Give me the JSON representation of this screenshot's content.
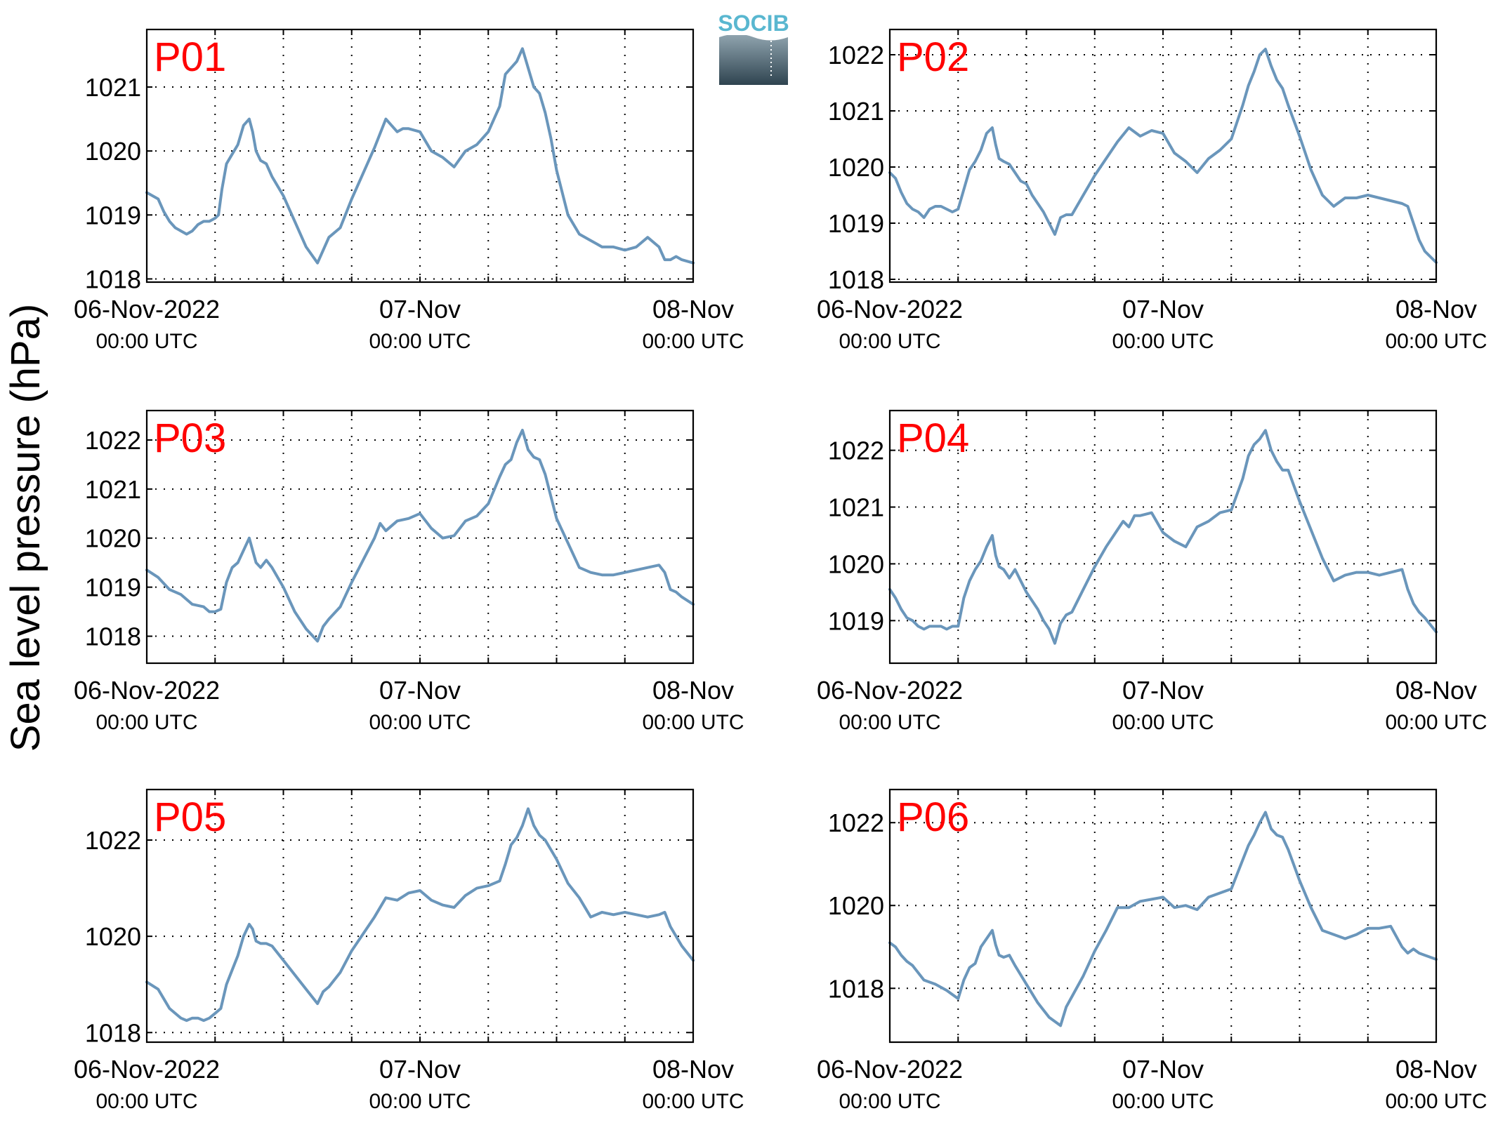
{
  "figure": {
    "ylabel": "Sea level pressure (hPa)",
    "logo_text": "SOCIB",
    "line_color": "#6a96bb",
    "label_color": "#ff0000"
  },
  "chart_data": [
    {
      "type": "line",
      "name": "P01",
      "x_ticks": [
        {
          "main": "06-Nov-2022",
          "sub": "00:00 UTC",
          "hour": 0
        },
        {
          "main": "07-Nov",
          "sub": "00:00 UTC",
          "hour": 24
        },
        {
          "main": "08-Nov",
          "sub": "00:00 UTC",
          "hour": 48
        }
      ],
      "xlim": [
        0,
        48
      ],
      "ylim": [
        1017.95,
        1021.9
      ],
      "yticks": [
        1018,
        1019,
        1020,
        1021
      ],
      "x": [
        0,
        1,
        1.5,
        2,
        2.5,
        3,
        3.5,
        4,
        4.5,
        5,
        5.5,
        6,
        6.3,
        6.6,
        7,
        7.5,
        8,
        8.5,
        9,
        9.3,
        9.6,
        10,
        10.5,
        11,
        12,
        13,
        14,
        15,
        15.5,
        16,
        17,
        18,
        19,
        20,
        21,
        21.5,
        22,
        22.5,
        23,
        24,
        25,
        26,
        27,
        28,
        29,
        30,
        31,
        31.5,
        32,
        32.5,
        33,
        33.5,
        34,
        34.5,
        35,
        35.5,
        36,
        37,
        38,
        39,
        39.5,
        40,
        41,
        42,
        43,
        44,
        45,
        45.5,
        46,
        46.5,
        47,
        48
      ],
      "y": [
        1019.35,
        1019.25,
        1019.05,
        1018.9,
        1018.8,
        1018.75,
        1018.7,
        1018.75,
        1018.85,
        1018.9,
        1018.9,
        1018.95,
        1019.0,
        1019.4,
        1019.8,
        1019.95,
        1020.1,
        1020.4,
        1020.5,
        1020.3,
        1020.0,
        1019.85,
        1019.8,
        1019.6,
        1019.3,
        1018.9,
        1018.5,
        1018.25,
        1018.45,
        1018.65,
        1018.8,
        1019.25,
        1019.65,
        1020.05,
        1020.5,
        1020.4,
        1020.3,
        1020.35,
        1020.35,
        1020.3,
        1020.0,
        1019.9,
        1019.75,
        1020.0,
        1020.1,
        1020.3,
        1020.7,
        1021.2,
        1021.3,
        1021.4,
        1021.6,
        1021.3,
        1021.0,
        1020.9,
        1020.6,
        1020.2,
        1019.7,
        1019.0,
        1018.7,
        1018.6,
        1018.55,
        1018.5,
        1018.5,
        1018.45,
        1018.5,
        1018.65,
        1018.5,
        1018.3,
        1018.3,
        1018.35,
        1018.3,
        1018.25
      ]
    },
    {
      "type": "line",
      "name": "P02",
      "x_ticks": [
        {
          "main": "06-Nov-2022",
          "sub": "00:00 UTC",
          "hour": 0
        },
        {
          "main": "07-Nov",
          "sub": "00:00 UTC",
          "hour": 24
        },
        {
          "main": "08-Nov",
          "sub": "00:00 UTC",
          "hour": 48
        }
      ],
      "xlim": [
        0,
        48
      ],
      "ylim": [
        1017.95,
        1022.45
      ],
      "yticks": [
        1018,
        1019,
        1020,
        1021,
        1022
      ],
      "x": [
        0,
        0.5,
        1,
        1.5,
        2,
        2.5,
        3,
        3.5,
        4,
        4.5,
        5,
        5.5,
        6,
        6.5,
        7,
        7.5,
        8,
        8.5,
        9,
        9.3,
        9.6,
        10,
        10.5,
        11,
        11.5,
        12,
        12.5,
        13,
        13.5,
        14,
        14.5,
        15,
        15.5,
        16,
        17,
        18,
        19,
        20,
        21,
        22,
        23,
        24,
        25,
        26,
        27,
        28,
        29,
        30,
        31,
        31.5,
        32,
        32.5,
        33,
        33.5,
        34,
        34.5,
        35,
        36,
        37,
        38,
        39,
        40,
        41,
        42,
        43,
        44,
        45,
        45.5,
        46,
        46.5,
        47,
        48
      ],
      "y": [
        1019.9,
        1019.8,
        1019.55,
        1019.35,
        1019.25,
        1019.2,
        1019.1,
        1019.25,
        1019.3,
        1019.3,
        1019.25,
        1019.2,
        1019.25,
        1019.6,
        1019.95,
        1020.1,
        1020.3,
        1020.6,
        1020.7,
        1020.4,
        1020.15,
        1020.1,
        1020.05,
        1019.9,
        1019.75,
        1019.7,
        1019.5,
        1019.35,
        1019.2,
        1019.0,
        1018.8,
        1019.1,
        1019.15,
        1019.15,
        1019.5,
        1019.85,
        1020.15,
        1020.45,
        1020.7,
        1020.55,
        1020.65,
        1020.6,
        1020.25,
        1020.1,
        1019.9,
        1020.15,
        1020.3,
        1020.5,
        1021.1,
        1021.45,
        1021.7,
        1022.0,
        1022.1,
        1021.8,
        1021.55,
        1021.4,
        1021.1,
        1020.55,
        1019.95,
        1019.5,
        1019.3,
        1019.45,
        1019.45,
        1019.5,
        1019.45,
        1019.4,
        1019.35,
        1019.3,
        1019.0,
        1018.7,
        1018.5,
        1018.3
      ]
    },
    {
      "type": "line",
      "name": "P03",
      "x_ticks": [
        {
          "main": "06-Nov-2022",
          "sub": "00:00 UTC",
          "hour": 0
        },
        {
          "main": "07-Nov",
          "sub": "00:00 UTC",
          "hour": 24
        },
        {
          "main": "08-Nov",
          "sub": "00:00 UTC",
          "hour": 48
        }
      ],
      "xlim": [
        0,
        48
      ],
      "ylim": [
        1017.45,
        1022.6
      ],
      "yticks": [
        1018,
        1019,
        1020,
        1021,
        1022
      ],
      "x": [
        0,
        1,
        2,
        3,
        4,
        5,
        5.5,
        6,
        6.5,
        7,
        7.5,
        8,
        8.5,
        9,
        9.3,
        9.6,
        10,
        10.5,
        11,
        12,
        13,
        14,
        15,
        15.5,
        16,
        17,
        18,
        19,
        20,
        20.5,
        21,
        21.5,
        22,
        23,
        24,
        25,
        26,
        27,
        28,
        29,
        30,
        31,
        31.5,
        32,
        32.5,
        33,
        33.5,
        34,
        34.5,
        35,
        36,
        37,
        38,
        39,
        40,
        41,
        42,
        43,
        44,
        45,
        45.5,
        46,
        46.5,
        47,
        48
      ],
      "y": [
        1019.35,
        1019.2,
        1018.95,
        1018.85,
        1018.65,
        1018.6,
        1018.5,
        1018.5,
        1018.55,
        1019.1,
        1019.4,
        1019.5,
        1019.75,
        1020.0,
        1019.75,
        1019.5,
        1019.4,
        1019.55,
        1019.4,
        1019.0,
        1018.5,
        1018.15,
        1017.9,
        1018.2,
        1018.35,
        1018.6,
        1019.1,
        1019.55,
        1020.0,
        1020.3,
        1020.15,
        1020.25,
        1020.35,
        1020.4,
        1020.5,
        1020.2,
        1020.0,
        1020.05,
        1020.35,
        1020.45,
        1020.7,
        1021.25,
        1021.5,
        1021.6,
        1021.95,
        1022.2,
        1021.8,
        1021.65,
        1021.6,
        1021.3,
        1020.4,
        1019.9,
        1019.4,
        1019.3,
        1019.25,
        1019.25,
        1019.3,
        1019.35,
        1019.4,
        1019.45,
        1019.3,
        1018.95,
        1018.9,
        1018.8,
        1018.65
      ]
    },
    {
      "type": "line",
      "name": "P04",
      "x_ticks": [
        {
          "main": "06-Nov-2022",
          "sub": "00:00 UTC",
          "hour": 0
        },
        {
          "main": "07-Nov",
          "sub": "00:00 UTC",
          "hour": 24
        },
        {
          "main": "08-Nov",
          "sub": "00:00 UTC",
          "hour": 48
        }
      ],
      "xlim": [
        0,
        48
      ],
      "ylim": [
        1018.25,
        1022.7
      ],
      "yticks": [
        1019,
        1020,
        1021,
        1022
      ],
      "x": [
        0,
        0.5,
        1,
        1.5,
        2,
        2.5,
        3,
        3.5,
        4,
        4.5,
        5,
        5.5,
        6,
        6.5,
        7,
        7.5,
        8,
        8.5,
        9,
        9.3,
        9.6,
        10,
        10.5,
        11,
        11.5,
        12,
        12.5,
        13,
        13.5,
        14,
        14.5,
        15,
        15.5,
        16,
        17,
        18,
        19,
        20,
        20.5,
        21,
        21.5,
        22,
        23,
        24,
        25,
        26,
        27,
        28,
        29,
        30,
        31,
        31.5,
        32,
        32.5,
        33,
        33.5,
        34,
        34.5,
        35,
        36,
        37,
        38,
        39,
        40,
        41,
        42,
        43,
        44,
        45,
        45.5,
        46,
        46.5,
        47,
        48
      ],
      "y": [
        1019.55,
        1019.4,
        1019.2,
        1019.05,
        1019.0,
        1018.9,
        1018.85,
        1018.9,
        1018.9,
        1018.9,
        1018.85,
        1018.9,
        1018.9,
        1019.4,
        1019.7,
        1019.9,
        1020.05,
        1020.3,
        1020.5,
        1020.15,
        1019.95,
        1019.9,
        1019.75,
        1019.9,
        1019.7,
        1019.5,
        1019.35,
        1019.2,
        1019.0,
        1018.85,
        1018.6,
        1018.95,
        1019.1,
        1019.15,
        1019.55,
        1019.95,
        1020.3,
        1020.6,
        1020.75,
        1020.65,
        1020.85,
        1020.85,
        1020.9,
        1020.55,
        1020.4,
        1020.3,
        1020.65,
        1020.75,
        1020.9,
        1020.95,
        1021.5,
        1021.9,
        1022.1,
        1022.2,
        1022.35,
        1022.0,
        1021.8,
        1021.65,
        1021.65,
        1021.1,
        1020.6,
        1020.1,
        1019.7,
        1019.8,
        1019.85,
        1019.85,
        1019.8,
        1019.85,
        1019.9,
        1019.55,
        1019.3,
        1019.15,
        1019.05,
        1018.8
      ]
    },
    {
      "type": "line",
      "name": "P05",
      "x_ticks": [
        {
          "main": "06-Nov-2022",
          "sub": "00:00 UTC",
          "hour": 0
        },
        {
          "main": "07-Nov",
          "sub": "00:00 UTC",
          "hour": 24
        },
        {
          "main": "08-Nov",
          "sub": "00:00 UTC",
          "hour": 48
        }
      ],
      "xlim": [
        0,
        48
      ],
      "ylim": [
        1017.8,
        1023.05
      ],
      "yticks": [
        1018,
        1020,
        1022
      ],
      "x": [
        0,
        1,
        1.5,
        2,
        2.5,
        3,
        3.5,
        4,
        4.5,
        5,
        5.5,
        6,
        6.5,
        7,
        7.5,
        8,
        8.5,
        9,
        9.3,
        9.6,
        10,
        10.5,
        11,
        12,
        13,
        14,
        15,
        15.5,
        16,
        17,
        18,
        19,
        20,
        21,
        22,
        23,
        24,
        25,
        26,
        27,
        28,
        29,
        30,
        31,
        31.5,
        32,
        32.5,
        33,
        33.5,
        34,
        34.5,
        35,
        36,
        37,
        38,
        39,
        40,
        41,
        42,
        43,
        44,
        45,
        45.5,
        46,
        46.5,
        47,
        48
      ],
      "y": [
        1019.05,
        1018.9,
        1018.7,
        1018.5,
        1018.4,
        1018.3,
        1018.25,
        1018.3,
        1018.3,
        1018.25,
        1018.3,
        1018.4,
        1018.5,
        1019.0,
        1019.3,
        1019.6,
        1020.0,
        1020.25,
        1020.15,
        1019.9,
        1019.85,
        1019.85,
        1019.8,
        1019.5,
        1019.2,
        1018.9,
        1018.6,
        1018.85,
        1018.95,
        1019.25,
        1019.7,
        1020.05,
        1020.4,
        1020.8,
        1020.75,
        1020.9,
        1020.95,
        1020.75,
        1020.65,
        1020.6,
        1020.85,
        1021.0,
        1021.05,
        1021.15,
        1021.5,
        1021.9,
        1022.05,
        1022.3,
        1022.65,
        1022.3,
        1022.1,
        1022.0,
        1021.6,
        1021.1,
        1020.8,
        1020.4,
        1020.5,
        1020.45,
        1020.5,
        1020.45,
        1020.4,
        1020.45,
        1020.5,
        1020.2,
        1020.0,
        1019.8,
        1019.5
      ]
    },
    {
      "type": "line",
      "name": "P06",
      "x_ticks": [
        {
          "main": "06-Nov-2022",
          "sub": "00:00 UTC",
          "hour": 0
        },
        {
          "main": "07-Nov",
          "sub": "00:00 UTC",
          "hour": 24
        },
        {
          "main": "08-Nov",
          "sub": "00:00 UTC",
          "hour": 48
        }
      ],
      "xlim": [
        0,
        48
      ],
      "ylim": [
        1016.7,
        1022.8
      ],
      "yticks": [
        1018,
        1020,
        1022
      ],
      "x": [
        0,
        0.5,
        1,
        1.5,
        2,
        3,
        4,
        5,
        5.5,
        6,
        6.5,
        7,
        7.5,
        8,
        8.5,
        9,
        9.3,
        9.6,
        10,
        10.5,
        11,
        12,
        13,
        14,
        14.5,
        15,
        15.5,
        16,
        17,
        18,
        19,
        20,
        21,
        22,
        23,
        24,
        25,
        26,
        27,
        28,
        29,
        30,
        31,
        31.5,
        32,
        32.5,
        33,
        33.5,
        34,
        34.5,
        35,
        36,
        37,
        38,
        39,
        40,
        41,
        42,
        43,
        44,
        45,
        45.5,
        46,
        46.5,
        47,
        48
      ],
      "y": [
        1019.1,
        1019.0,
        1018.8,
        1018.65,
        1018.55,
        1018.2,
        1018.1,
        1017.95,
        1017.85,
        1017.75,
        1018.2,
        1018.5,
        1018.6,
        1019.0,
        1019.2,
        1019.4,
        1019.05,
        1018.8,
        1018.75,
        1018.8,
        1018.55,
        1018.1,
        1017.65,
        1017.3,
        1017.2,
        1017.1,
        1017.55,
        1017.8,
        1018.3,
        1018.9,
        1019.4,
        1019.95,
        1019.95,
        1020.1,
        1020.15,
        1020.2,
        1019.95,
        1020.0,
        1019.9,
        1020.2,
        1020.3,
        1020.4,
        1021.1,
        1021.45,
        1021.7,
        1022.0,
        1022.25,
        1021.85,
        1021.7,
        1021.65,
        1021.35,
        1020.6,
        1019.95,
        1019.4,
        1019.3,
        1019.2,
        1019.3,
        1019.45,
        1019.45,
        1019.5,
        1019.0,
        1018.85,
        1018.95,
        1018.85,
        1018.8,
        1018.7
      ]
    }
  ]
}
